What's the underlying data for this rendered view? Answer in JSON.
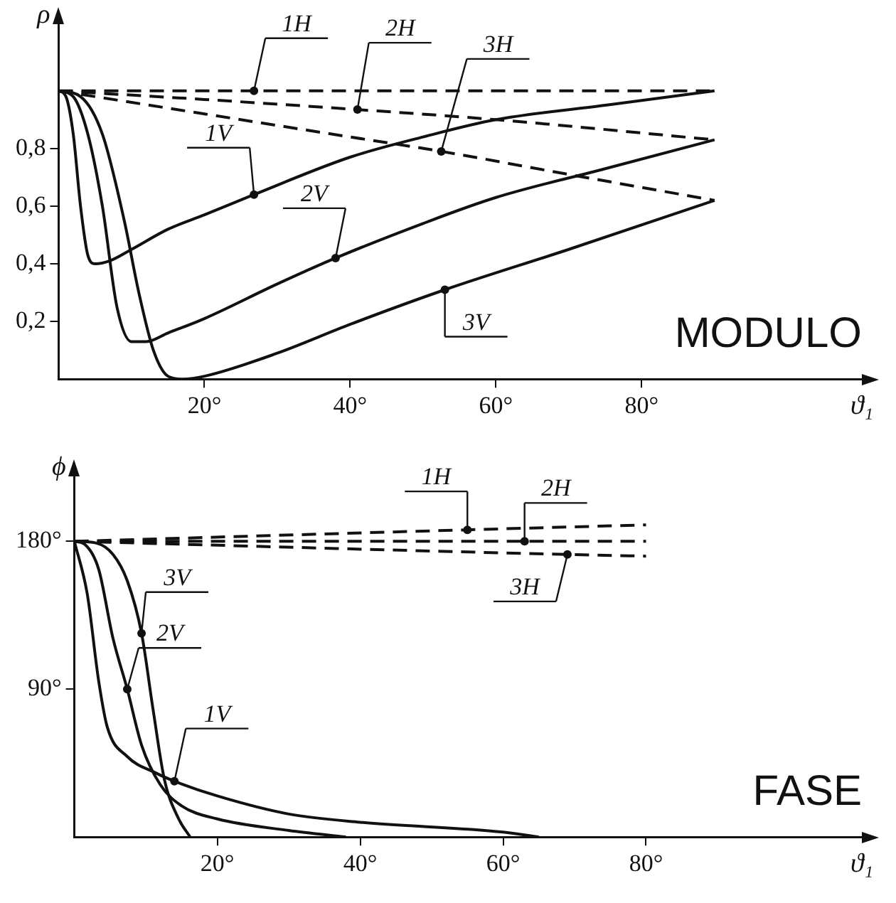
{
  "chart_data": [
    {
      "type": "line",
      "title": "MODULO",
      "xlabel": "ϑ₁",
      "ylabel": "ρ",
      "xlim": [
        0,
        111
      ],
      "ylim": [
        0,
        1.25
      ],
      "xticks": [
        {
          "value": 20,
          "label": "20°"
        },
        {
          "value": 40,
          "label": "40°"
        },
        {
          "value": 60,
          "label": "60°"
        },
        {
          "value": 80,
          "label": "80°"
        }
      ],
      "yticks": [
        {
          "value": 0.2,
          "label": "0,2"
        },
        {
          "value": 0.4,
          "label": "0,4"
        },
        {
          "value": 0.6,
          "label": "0,6"
        },
        {
          "value": 0.8,
          "label": "0,8"
        }
      ],
      "grid": false,
      "legend": false,
      "marker": "none",
      "series": [
        {
          "color": "#111111",
          "line_style": "dashed",
          "x": [
            0,
            90
          ],
          "values": [
            1,
            1
          ]
        },
        {
          "color": "#111111",
          "line_style": "dashed",
          "x": [
            0,
            20,
            41,
            60,
            90
          ],
          "values": [
            1,
            0.97,
            0.935,
            0.9,
            0.83
          ]
        },
        {
          "color": "#111111",
          "line_style": "dashed",
          "x": [
            0,
            20,
            40,
            52.5,
            70,
            90
          ],
          "values": [
            1,
            0.92,
            0.84,
            0.79,
            0.71,
            0.62
          ]
        },
        {
          "color": "#111111",
          "line_style": "solid",
          "x": [
            0,
            1,
            2,
            3,
            4,
            5,
            7,
            10,
            15,
            20,
            26.8,
            40,
            50,
            60,
            75,
            90
          ],
          "values": [
            1,
            0.98,
            0.85,
            0.6,
            0.43,
            0.4,
            0.41,
            0.45,
            0.52,
            0.57,
            0.64,
            0.77,
            0.84,
            0.9,
            0.95,
            1
          ]
        },
        {
          "color": "#111111",
          "line_style": "solid",
          "x": [
            0,
            2,
            4,
            6,
            8,
            10,
            12,
            15,
            20,
            30,
            38,
            50,
            60,
            75,
            90
          ],
          "values": [
            1,
            0.98,
            0.85,
            0.6,
            0.25,
            0.13,
            0.13,
            0.16,
            0.21,
            0.33,
            0.42,
            0.54,
            0.63,
            0.73,
            0.83
          ]
        },
        {
          "color": "#111111",
          "line_style": "solid",
          "x": [
            0,
            3,
            6,
            9,
            11,
            13,
            15,
            17,
            20,
            30,
            40,
            53,
            70,
            90
          ],
          "values": [
            1,
            0.98,
            0.85,
            0.55,
            0.3,
            0.1,
            0.01,
            0,
            0.01,
            0.09,
            0.19,
            0.31,
            0.45,
            0.62
          ]
        }
      ],
      "annotations": [
        {
          "text": "1H",
          "x": 26.8,
          "y": 1
        },
        {
          "text": "2H",
          "x": 41,
          "y": 0.935
        },
        {
          "text": "3H",
          "x": 52.5,
          "y": 0.79
        },
        {
          "text": "1V",
          "x": 26.8,
          "y": 0.64
        },
        {
          "text": "2V",
          "x": 38,
          "y": 0.42
        },
        {
          "text": "3V",
          "x": 53,
          "y": 0.31
        }
      ]
    },
    {
      "type": "line",
      "title": "FASE",
      "xlabel": "ϑ₁",
      "ylabel": "ϕ",
      "xlim": [
        0,
        111
      ],
      "ylim": [
        0,
        223
      ],
      "xticks": [
        {
          "value": 20,
          "label": "20°"
        },
        {
          "value": 40,
          "label": "40°"
        },
        {
          "value": 60,
          "label": "60°"
        },
        {
          "value": 80,
          "label": "80°"
        }
      ],
      "yticks": [
        {
          "value": 90,
          "label": "90°"
        },
        {
          "value": 180,
          "label": "180°"
        }
      ],
      "grid": false,
      "legend": false,
      "marker": "none",
      "series": [
        {
          "color": "#111111",
          "line_style": "dashed",
          "x": [
            0,
            55,
            80
          ],
          "values": [
            180,
            187,
            190
          ]
        },
        {
          "color": "#111111",
          "line_style": "dashed",
          "x": [
            0,
            80
          ],
          "values": [
            180,
            180
          ]
        },
        {
          "color": "#111111",
          "line_style": "dashed",
          "x": [
            0,
            69,
            80
          ],
          "values": [
            180,
            172,
            171
          ]
        },
        {
          "color": "#111111",
          "line_style": "solid",
          "x": [
            0,
            1.8,
            3.4,
            4.6,
            7.4,
            11.4,
            14,
            20,
            30,
            40,
            60,
            65
          ],
          "values": [
            180,
            148,
            95,
            67,
            49,
            39,
            34,
            25,
            14,
            9,
            3,
            0
          ]
        },
        {
          "color": "#111111",
          "line_style": "solid",
          "x": [
            0,
            1.5,
            3.4,
            5.4,
            7.4,
            9.4,
            12,
            15,
            20,
            30,
            38
          ],
          "values": [
            180,
            178,
            163,
            121,
            90,
            56,
            32,
            19,
            11,
            4,
            0
          ]
        },
        {
          "color": "#111111",
          "line_style": "solid",
          "x": [
            0,
            3,
            5.4,
            7.4,
            9.4,
            11,
            12.6,
            14.6,
            16.2
          ],
          "values": [
            180,
            179,
            172,
            156,
            124,
            78,
            35,
            11,
            0
          ]
        }
      ],
      "annotations": [
        {
          "text": "1H",
          "x": 55,
          "y": 187
        },
        {
          "text": "2H",
          "x": 63,
          "y": 180
        },
        {
          "text": "3H",
          "x": 69,
          "y": 172
        },
        {
          "text": "3V",
          "x": 9.4,
          "y": 124
        },
        {
          "text": "2V",
          "x": 7.4,
          "y": 90
        },
        {
          "text": "1V",
          "x": 14,
          "y": 34
        }
      ]
    }
  ]
}
